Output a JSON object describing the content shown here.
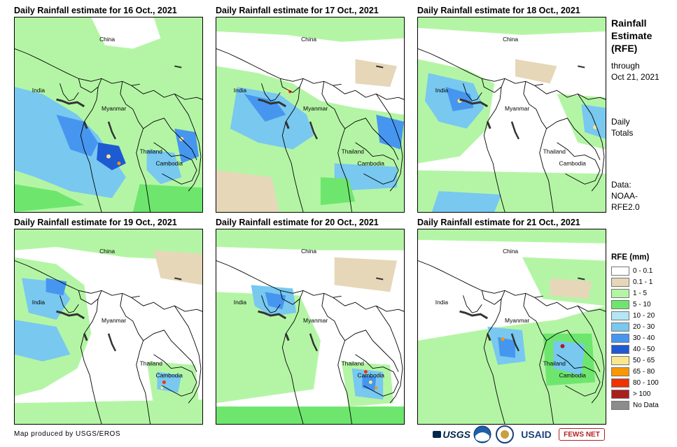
{
  "panels": [
    {
      "title": "Daily Rainfall estimate for 16 Oct., 2021",
      "labels": {
        "china": "China",
        "india": "India",
        "myanmar": "Myanmar",
        "thailand": "Thailand",
        "cambodia": "Cambodia"
      }
    },
    {
      "title": "Daily Rainfall estimate for 17 Oct., 2021",
      "labels": {
        "china": "China",
        "india": "India",
        "myanmar": "Myanmar",
        "thailand": "Thailand",
        "cambodia": "Cambodia"
      }
    },
    {
      "title": "Daily Rainfall estimate for 18 Oct., 2021",
      "labels": {
        "china": "China",
        "india": "India",
        "myanmar": "Myanmar",
        "thailand": "Thailand",
        "cambodia": "Cambodia"
      }
    },
    {
      "title": "Daily Rainfall estimate for 19 Oct., 2021",
      "labels": {
        "china": "China",
        "india": "India",
        "myanmar": "Myanmar",
        "thailand": "Thailand",
        "cambodia": "Cambodia"
      }
    },
    {
      "title": "Daily Rainfall estimate for 20 Oct., 2021",
      "labels": {
        "china": "China",
        "india": "India",
        "myanmar": "Myanmar",
        "thailand": "Thailand",
        "cambodia": "Cambodia"
      }
    },
    {
      "title": "Daily Rainfall estimate for 21 Oct., 2021",
      "labels": {
        "china": "China",
        "india": "India",
        "myanmar": "Myanmar",
        "thailand": "Thailand",
        "cambodia": "Cambodia"
      }
    }
  ],
  "sidebar": {
    "title_line1": "Rainfall",
    "title_line2": "Estimate",
    "title_line3": "(RFE)",
    "through": "through",
    "date": "Oct 21, 2021",
    "daily1": "Daily",
    "daily2": "Totals",
    "data1": "Data:",
    "data2": "NOAA-",
    "data3": "RFE2.0"
  },
  "legend": {
    "title": "RFE (mm)",
    "items": [
      {
        "label": "0 - 0.1",
        "color": "#ffffff"
      },
      {
        "label": "0.1 - 1",
        "color": "#e6d7b9"
      },
      {
        "label": "1 - 5",
        "color": "#b4f5a5"
      },
      {
        "label": "5 - 10",
        "color": "#6ee66e"
      },
      {
        "label": "10 - 20",
        "color": "#b4e6f5"
      },
      {
        "label": "20 - 30",
        "color": "#78c8f0"
      },
      {
        "label": "30 - 40",
        "color": "#4696f0"
      },
      {
        "label": "40 - 50",
        "color": "#1e5ad2"
      },
      {
        "label": "50 - 65",
        "color": "#fae68c"
      },
      {
        "label": "65 - 80",
        "color": "#fa9600"
      },
      {
        "label": "80 - 100",
        "color": "#f03200"
      },
      {
        "label": "> 100",
        "color": "#aa1e1e"
      },
      {
        "label": "No Data",
        "color": "#8c8c8c"
      }
    ]
  },
  "credit": "Map produced by USGS/EROS",
  "logos": {
    "usgs": "USGS",
    "usaid": "USAID",
    "fews": "FEWS NET"
  }
}
